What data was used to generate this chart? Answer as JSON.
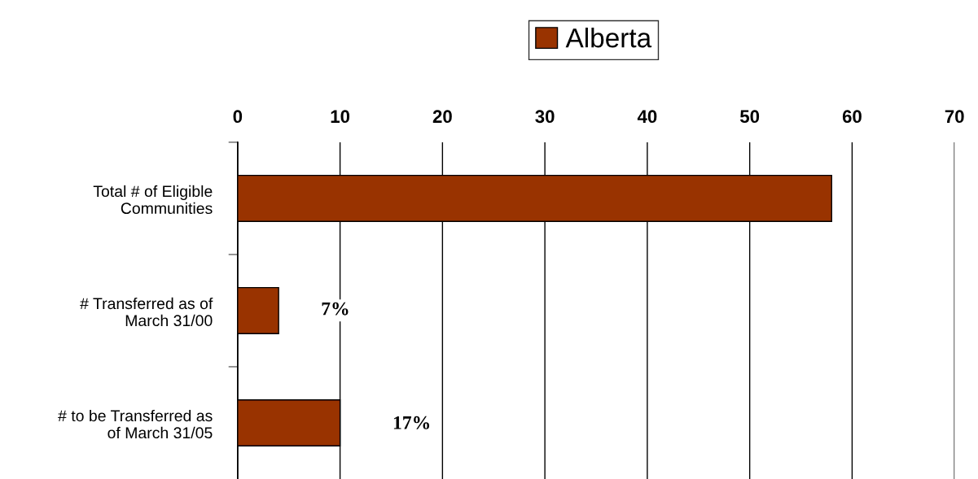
{
  "chart_data": {
    "type": "bar",
    "orientation": "horizontal",
    "categories": [
      "Total # of Eligible\nCommunities",
      "# Transferred as of\nMarch 31/00",
      "# to be Transferred as\nof March 31/05"
    ],
    "series": [
      {
        "name": "Alberta",
        "color": "#993300",
        "values": [
          58,
          4,
          10
        ]
      }
    ],
    "xlim": [
      0,
      70
    ],
    "xticks": [
      0,
      10,
      20,
      30,
      40,
      50,
      60,
      70
    ],
    "grid": "x",
    "legend": "top",
    "annotations": [
      "7%",
      "17%"
    ]
  }
}
